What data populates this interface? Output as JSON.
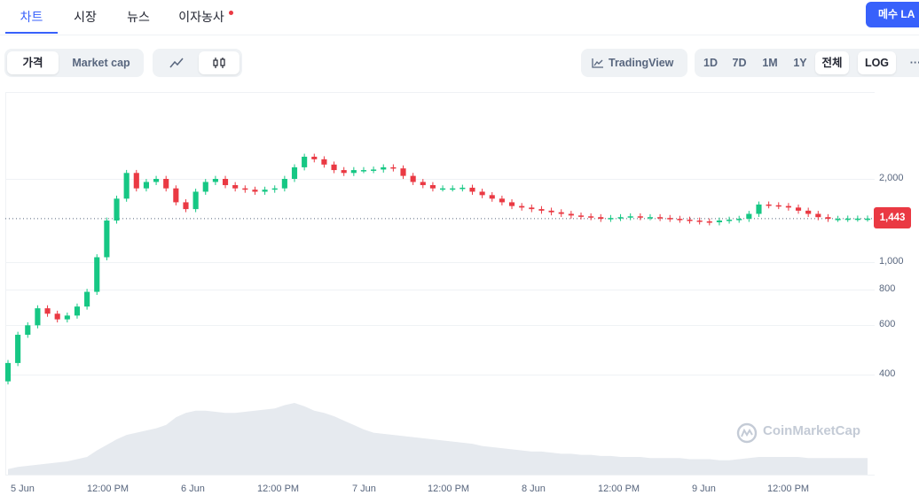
{
  "tabs": [
    {
      "label": "차트",
      "active": true
    },
    {
      "label": "시장",
      "active": false
    },
    {
      "label": "뉴스",
      "active": false
    },
    {
      "label": "이자농사",
      "active": false,
      "badge_color": "#ea3943"
    }
  ],
  "buy_button": {
    "label": "메수 LA"
  },
  "toolbar": {
    "view_toggle": [
      {
        "label": "가격",
        "active": true
      },
      {
        "label": "Market cap",
        "active": false
      }
    ],
    "chart_type": [
      {
        "icon": "line-chart-icon",
        "active": false
      },
      {
        "icon": "candlestick-icon",
        "active": true
      }
    ],
    "tradingview_label": "TradingView",
    "ranges": [
      {
        "label": "1D",
        "active": false
      },
      {
        "label": "7D",
        "active": false
      },
      {
        "label": "1M",
        "active": false
      },
      {
        "label": "1Y",
        "active": false
      },
      {
        "label": "전체",
        "active": true
      }
    ],
    "log_label": "LOG",
    "more_label": "···"
  },
  "chart_data": {
    "type": "candlestick",
    "scale": "log",
    "y_ticks": [
      2000,
      1000,
      800,
      600,
      400
    ],
    "y_tick_labels": [
      "2,000",
      "1,000",
      "800",
      "600",
      "400"
    ],
    "x_tick_labels": [
      "5 Jun",
      "12:00 PM",
      "6 Jun",
      "12:00 PM",
      "7 Jun",
      "12:00 PM",
      "8 Jun",
      "12:00 PM",
      "9 Jun",
      "12:00 PM"
    ],
    "current_price": 1443,
    "current_price_label": "1,443",
    "up_color": "#16c784",
    "down_color": "#ea3943",
    "watermark": "CoinMarketCap",
    "closes": [
      440,
      555,
      600,
      690,
      660,
      630,
      650,
      700,
      790,
      1050,
      1420,
      1700,
      2100,
      1850,
      1950,
      2000,
      1850,
      1650,
      1560,
      1800,
      1950,
      2000,
      1900,
      1850,
      1830,
      1800,
      1830,
      1850,
      2000,
      2200,
      2400,
      2350,
      2250,
      2150,
      2100,
      2150,
      2150,
      2160,
      2200,
      2180,
      2050,
      1950,
      1900,
      1850,
      1850,
      1850,
      1860,
      1800,
      1750,
      1700,
      1650,
      1600,
      1580,
      1560,
      1540,
      1520,
      1500,
      1480,
      1470,
      1460,
      1440,
      1450,
      1460,
      1470,
      1460,
      1460,
      1450,
      1440,
      1430,
      1420,
      1410,
      1400,
      1420,
      1430,
      1440,
      1500,
      1620,
      1610,
      1600,
      1580,
      1540,
      1500,
      1460,
      1440,
      1440,
      1443,
      1443,
      1443
    ],
    "volumes": [
      5,
      7,
      8,
      9,
      10,
      11,
      12,
      14,
      16,
      22,
      27,
      32,
      36,
      38,
      40,
      42,
      45,
      52,
      56,
      58,
      58,
      57,
      56,
      56,
      57,
      58,
      59,
      60,
      63,
      65,
      62,
      58,
      56,
      53,
      49,
      45,
      41,
      38,
      37,
      36,
      35,
      34,
      33,
      32,
      31,
      30,
      29,
      28,
      26,
      25,
      24,
      23,
      22,
      21,
      21,
      20,
      19,
      19,
      18,
      18,
      17,
      17,
      16,
      16,
      16,
      15,
      15,
      15,
      15,
      14,
      14,
      14,
      13,
      13,
      14,
      15,
      16,
      16,
      16,
      16,
      16,
      15,
      15,
      15,
      15,
      15,
      15,
      15
    ]
  }
}
